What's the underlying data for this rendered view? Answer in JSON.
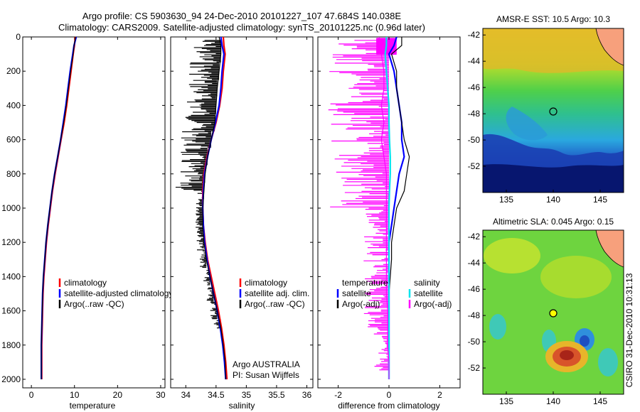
{
  "title": {
    "line1": "Argo profile: CS 5903630_94 24-Dec-2010 20101227_107 47.684S 140.038E",
    "line2": "Climatology: CARS2009. Satellite-adjusted climatology: synTS_20101225.nc (0.96d later)"
  },
  "colors": {
    "climatology": "#ff0000",
    "satellite": "#0000ff",
    "argo": "#000000",
    "magenta": "#ff00ff",
    "cyan": "#00e5ee"
  },
  "chart_data": [
    {
      "id": "temperature",
      "type": "line",
      "xlabel": "temperature",
      "ylabel": "",
      "xlim": [
        -2,
        31
      ],
      "ylim": [
        2050,
        0
      ],
      "xticks": [
        0,
        10,
        20,
        30
      ],
      "yticks": [
        0,
        200,
        400,
        600,
        800,
        1000,
        1200,
        1400,
        1600,
        1800,
        2000
      ],
      "legend": [
        "climatology",
        "satellite-adjusted climatology",
        "Argo(..raw -QC)"
      ],
      "legend_position": "lower-right",
      "depth": [
        0,
        50,
        100,
        200,
        300,
        400,
        500,
        600,
        700,
        800,
        900,
        1000,
        1100,
        1200,
        1300,
        1400,
        1500,
        1600,
        1700,
        1800,
        1900,
        2000
      ],
      "series": [
        {
          "name": "climatology",
          "color": "#ff0000",
          "values": [
            10.2,
            10.0,
            9.7,
            9.2,
            8.7,
            8.2,
            7.6,
            6.9,
            6.2,
            5.5,
            4.9,
            4.4,
            3.9,
            3.5,
            3.2,
            2.9,
            2.7,
            2.6,
            2.5,
            2.4,
            2.4,
            2.4
          ]
        },
        {
          "name": "satellite-adjusted climatology",
          "color": "#0000ff",
          "values": [
            10.4,
            9.9,
            9.6,
            9.0,
            8.5,
            8.0,
            7.4,
            6.8,
            6.1,
            5.4,
            4.8,
            4.3,
            3.8,
            3.4,
            3.1,
            2.8,
            2.6,
            2.5,
            2.4,
            2.3,
            2.3,
            2.3
          ]
        },
        {
          "name": "Argo(..raw -QC)",
          "color": "#000000",
          "values": [
            10.3,
            9.9,
            9.7,
            9.1,
            8.6,
            8.1,
            7.5,
            6.8,
            6.1,
            5.4,
            4.8,
            4.3,
            3.8,
            3.4,
            3.1,
            2.8,
            2.6,
            2.5,
            2.4,
            2.3,
            2.3,
            2.3
          ]
        }
      ]
    },
    {
      "id": "salinity",
      "type": "line",
      "xlabel": "salinity",
      "xlim": [
        33.75,
        36.1
      ],
      "ylim": [
        2050,
        0
      ],
      "xticks": [
        34,
        34.5,
        35,
        35.5,
        36
      ],
      "xticklabels": [
        "34",
        "34.5",
        "35",
        "35.5",
        "36"
      ],
      "legend": [
        "climatology",
        "satellite adj. clim.",
        "Argo(..raw -QC)"
      ],
      "legend_position": "lower-right",
      "annotation": [
        "Argo AUSTRALIA",
        "PI: Susan Wijffels"
      ],
      "depth": [
        0,
        50,
        100,
        200,
        300,
        400,
        500,
        600,
        700,
        800,
        900,
        1000,
        1100,
        1200,
        1300,
        1400,
        1500,
        1600,
        1700,
        1800,
        1900,
        2000
      ],
      "series": [
        {
          "name": "climatology",
          "color": "#ff0000",
          "values": [
            34.62,
            34.63,
            34.65,
            34.62,
            34.6,
            34.56,
            34.5,
            34.42,
            34.35,
            34.3,
            34.28,
            34.28,
            34.29,
            34.32,
            34.36,
            34.42,
            34.48,
            34.54,
            34.59,
            34.63,
            34.66,
            34.68
          ]
        },
        {
          "name": "satellite adj. clim.",
          "color": "#0000ff",
          "values": [
            34.58,
            34.6,
            34.63,
            34.6,
            34.58,
            34.55,
            34.49,
            34.42,
            34.36,
            34.31,
            34.29,
            34.28,
            34.29,
            34.31,
            34.35,
            34.4,
            34.46,
            34.52,
            34.57,
            34.61,
            34.64,
            34.66
          ]
        },
        {
          "name": "Argo(..raw -QC)",
          "color": "#000000",
          "values": [
            34.55,
            34.58,
            34.58,
            34.55,
            34.52,
            34.5,
            34.48,
            34.42,
            34.36,
            34.32,
            34.3,
            34.28,
            34.28,
            34.3,
            34.34,
            34.4,
            34.46,
            34.52,
            34.58,
            34.62,
            34.65,
            34.66
          ]
        }
      ]
    },
    {
      "id": "difference",
      "type": "line",
      "xlabel": "difference from climatology",
      "xlim": [
        -2.8,
        2.8
      ],
      "ylim": [
        2050,
        0
      ],
      "xticks": [
        -2,
        0,
        2
      ],
      "legend": [
        "temperature",
        "satellite",
        "Argo(-adj)",
        "salinity",
        "satellite",
        "Argo(-adj)"
      ],
      "legend_position": "lower-center",
      "depth": [
        0,
        50,
        100,
        200,
        300,
        400,
        500,
        600,
        700,
        800,
        900,
        1000,
        1100,
        1200,
        1300,
        1400,
        1500,
        1600,
        1700,
        1800,
        1900,
        2000
      ],
      "series": [
        {
          "name": "temperature satellite",
          "color": "#0000ff",
          "values": [
            0.3,
            0.2,
            0.0,
            0.2,
            0.3,
            0.4,
            0.5,
            0.5,
            0.6,
            0.4,
            0.3,
            0.2,
            0.1,
            0.0,
            0.0,
            0.0,
            0.0,
            0.0,
            0.0,
            0.0,
            0.0,
            0.0
          ]
        },
        {
          "name": "temperature Argo(-adj)",
          "color": "#000000",
          "values": [
            0.5,
            0.5,
            0.1,
            0.3,
            0.3,
            0.4,
            0.5,
            0.6,
            0.8,
            0.7,
            0.6,
            0.3,
            0.2,
            0.1,
            0.1,
            0.05,
            0.0,
            0.0,
            0.0,
            0.0,
            0.0,
            0.0
          ]
        },
        {
          "name": "salinity satellite",
          "color": "#00e5ee",
          "values": [
            -0.1,
            -0.1,
            -0.15,
            -0.1,
            -0.05,
            0.0,
            0.0,
            0.02,
            0.05,
            0.05,
            0.02,
            0.0,
            0.0,
            0.0,
            0.0,
            0.0,
            0.0,
            0.0,
            0.0,
            0.0,
            0.0,
            0.0
          ]
        },
        {
          "name": "salinity Argo(-adj)",
          "color": "#ff00ff",
          "values": [
            -0.4,
            -0.3,
            -0.3,
            -0.2,
            -0.2,
            -0.3,
            -0.2,
            -0.3,
            -0.2,
            -0.1,
            -0.1,
            -0.1,
            -0.1,
            -0.1,
            -0.1,
            -0.1,
            -0.1,
            -0.05,
            -0.05,
            -0.05,
            0.0,
            0.0
          ]
        }
      ]
    },
    {
      "id": "sst-map",
      "type": "heatmap",
      "title": "AMSR-E SST: 10.5 Argo: 10.3",
      "xlim": [
        132.5,
        147.5
      ],
      "ylim": [
        -54,
        -41.5
      ],
      "xticks": [
        135,
        140,
        145
      ],
      "yticks": [
        -42,
        -44,
        -46,
        -48,
        -50,
        -52
      ],
      "marker": {
        "lon": 140.038,
        "lat": -47.684
      }
    },
    {
      "id": "sla-map",
      "type": "heatmap",
      "title": "Altimetric SLA: 0.045 Argo: 0.15",
      "xlim": [
        132.5,
        147.5
      ],
      "ylim": [
        -54,
        -41.5
      ],
      "xticks": [
        135,
        140,
        145
      ],
      "yticks": [
        -42,
        -44,
        -46,
        -48,
        -50,
        -52
      ],
      "marker": {
        "lon": 140.038,
        "lat": -47.684
      }
    }
  ],
  "footer": {
    "stamp": "CSIRO 31-Dec-2010 10:31:13"
  }
}
